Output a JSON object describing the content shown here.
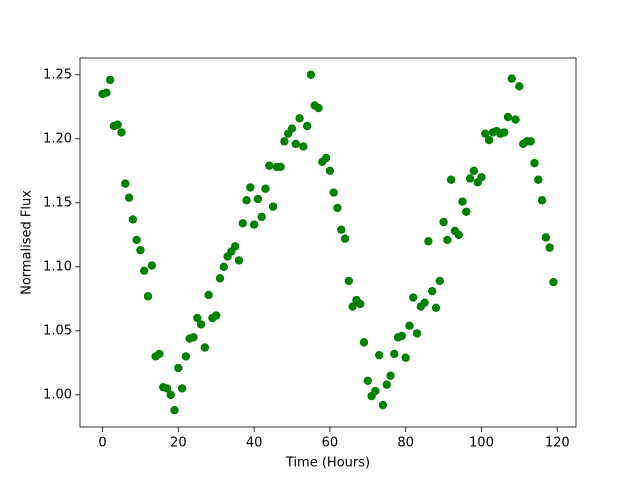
{
  "chart_data": {
    "type": "scatter",
    "xlabel": "Time (Hours)",
    "ylabel": "Normalised Flux",
    "color": "#008000",
    "x": [
      0,
      1,
      2,
      3,
      4,
      5,
      6,
      7,
      8,
      9,
      10,
      11,
      12,
      13,
      14,
      15,
      16,
      17,
      18,
      19,
      20,
      21,
      22,
      23,
      24,
      25,
      26,
      27,
      28,
      29,
      30,
      31,
      32,
      33,
      34,
      35,
      36,
      37,
      38,
      39,
      40,
      41,
      42,
      43,
      44,
      45,
      46,
      47,
      48,
      49,
      50,
      51,
      52,
      53,
      54,
      55,
      56,
      57,
      58,
      59,
      60,
      61,
      62,
      63,
      64,
      65,
      66,
      67,
      68,
      69,
      70,
      71,
      72,
      73,
      74,
      75,
      76,
      77,
      78,
      79,
      80,
      81,
      82,
      83,
      84,
      85,
      86,
      87,
      88,
      89,
      90,
      91,
      92,
      93,
      94,
      95,
      96,
      97,
      98,
      99,
      100,
      101,
      102,
      103,
      104,
      105,
      106,
      107,
      108,
      109,
      110,
      111,
      112,
      113,
      114,
      115,
      116,
      117,
      118,
      119
    ],
    "values": [
      1.235,
      1.236,
      1.246,
      1.21,
      1.211,
      1.205,
      1.165,
      1.154,
      1.137,
      1.121,
      1.113,
      1.097,
      1.077,
      1.101,
      1.03,
      1.032,
      1.006,
      1.005,
      1.0,
      0.988,
      1.021,
      1.005,
      1.03,
      1.044,
      1.045,
      1.06,
      1.055,
      1.037,
      1.078,
      1.06,
      1.062,
      1.091,
      1.1,
      1.108,
      1.112,
      1.116,
      1.105,
      1.134,
      1.152,
      1.162,
      1.133,
      1.153,
      1.139,
      1.161,
      1.179,
      1.147,
      1.178,
      1.178,
      1.198,
      1.204,
      1.208,
      1.196,
      1.216,
      1.194,
      1.21,
      1.25,
      1.226,
      1.224,
      1.182,
      1.185,
      1.175,
      1.158,
      1.146,
      1.129,
      1.122,
      1.089,
      1.069,
      1.074,
      1.071,
      1.041,
      1.011,
      0.999,
      1.003,
      1.031,
      0.992,
      1.008,
      1.015,
      1.032,
      1.045,
      1.046,
      1.029,
      1.054,
      1.076,
      1.048,
      1.069,
      1.072,
      1.12,
      1.081,
      1.068,
      1.089,
      1.135,
      1.121,
      1.168,
      1.128,
      1.125,
      1.151,
      1.143,
      1.169,
      1.175,
      1.166,
      1.17,
      1.204,
      1.199,
      1.205,
      1.206,
      1.204,
      1.205,
      1.217,
      1.247,
      1.215,
      1.241,
      1.196,
      1.198,
      1.198,
      1.181,
      1.168,
      1.152,
      1.123,
      1.115,
      1.088
    ],
    "xlim": [
      -5.95,
      124.95
    ],
    "xticks": [
      0,
      20,
      40,
      60,
      80,
      100,
      120
    ],
    "ylim": [
      0.9749,
      1.2631
    ],
    "yticks": [
      {
        "value": 1.0,
        "label": "1.00"
      },
      1.05,
      {
        "value": 1.1,
        "label": "1.10"
      },
      1.15,
      {
        "value": 1.2,
        "label": "1.20"
      },
      1.25
    ]
  }
}
